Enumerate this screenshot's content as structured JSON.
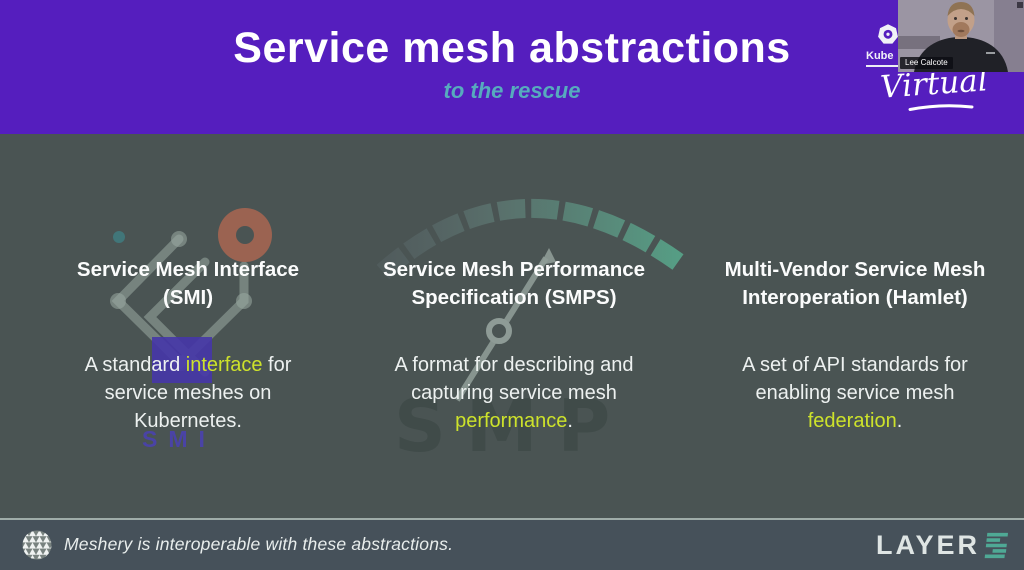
{
  "header": {
    "title": "Service mesh abstractions",
    "subtitle": "to the rescue"
  },
  "event": {
    "logo_text": "Kube",
    "edition": "Virtual"
  },
  "webcam": {
    "name_label": "Lee Calcote"
  },
  "columns": [
    {
      "heading_lines": [
        [
          {
            "t": "Service Mesh Interface"
          }
        ],
        [
          {
            "t": "(SMI)"
          }
        ]
      ],
      "body_lines": [
        [
          {
            "t": "A standard "
          },
          {
            "t": "interface",
            "hl": true
          },
          {
            "t": " for"
          }
        ],
        [
          {
            "t": "service meshes on"
          }
        ],
        [
          {
            "t": "Kubernetes."
          }
        ]
      ]
    },
    {
      "heading_lines": [
        [
          {
            "t": "Service Mesh Performance"
          }
        ],
        [
          {
            "t": "Specification (SMPS)"
          }
        ]
      ],
      "body_lines": [
        [
          {
            "t": "A format for describing and"
          }
        ],
        [
          {
            "t": "capturing service mesh"
          }
        ],
        [
          {
            "t": "performance",
            "hl": true
          },
          {
            "t": "."
          }
        ]
      ]
    },
    {
      "heading_lines": [
        [
          {
            "t": "Multi-Vendor Service Mesh"
          }
        ],
        [
          {
            "t": "Interoperation (Hamlet)"
          }
        ]
      ],
      "body_lines": [
        [
          {
            "t": "A set of API standards for"
          }
        ],
        [
          {
            "t": "enabling service mesh"
          }
        ],
        [
          {
            "t": "federation",
            "hl": true
          },
          {
            "t": "."
          }
        ]
      ]
    }
  ],
  "watermarks": {
    "smi": "SMI",
    "smp": "SMP"
  },
  "footer": {
    "note": "Meshery is interoperable with these abstractions.",
    "brand_word": "LAYER",
    "brand_number": "5"
  },
  "colors": {
    "header_bg": "#551EBE",
    "subtitle_teal": "#57ABBE",
    "highlight_yellow": "#CDE22B",
    "gauge_green": "#57A187",
    "brand_teal": "#4FA995",
    "slide_bg": "#4A5453",
    "footer_bg": "#46515A",
    "smi_purple": "#4636A8",
    "smi_brown": "#9B6351"
  }
}
